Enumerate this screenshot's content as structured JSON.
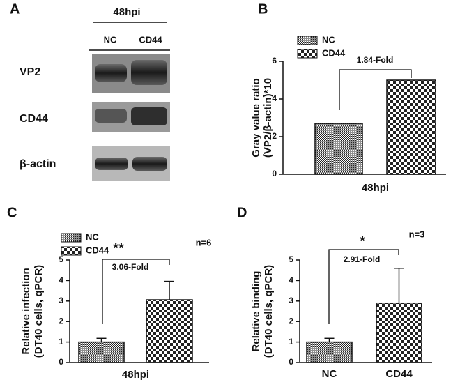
{
  "blot": {
    "panel": "A",
    "title": "48hpi",
    "lanes": [
      "NC",
      "CD44"
    ],
    "rows": [
      "VP2",
      "CD44",
      "β-actin"
    ]
  },
  "chart_data": [
    {
      "type": "bar",
      "panel": "B",
      "ylabel": [
        "Gray value ratio",
        "(VP2/β-actin)*10"
      ],
      "categories": [
        "48hpi"
      ],
      "series": [
        {
          "name": "NC",
          "values": [
            2.7
          ]
        },
        {
          "name": "CD44",
          "values": [
            5.0
          ]
        }
      ],
      "ylim": [
        0,
        6
      ],
      "yticks": [
        0,
        2,
        4,
        6
      ],
      "annotation": "1.84-Fold"
    },
    {
      "type": "bar",
      "panel": "C",
      "ylabel": [
        "Relative infection",
        "(DT40 cells, qPCR)"
      ],
      "categories": [
        "48hpi"
      ],
      "series": [
        {
          "name": "NC",
          "values": [
            1.0
          ],
          "errors": [
            0.18
          ]
        },
        {
          "name": "CD44",
          "values": [
            3.06
          ],
          "errors": [
            0.9
          ]
        }
      ],
      "ylim": [
        0,
        5
      ],
      "yticks": [
        0,
        1,
        2,
        3,
        4,
        5
      ],
      "annotation": "3.06-Fold",
      "significance": "**",
      "n_label": "n=6"
    },
    {
      "type": "bar",
      "panel": "D",
      "ylabel": [
        "Relative binding",
        "(DT40 cells, qPCR)"
      ],
      "categories": [
        "NC",
        "CD44"
      ],
      "values": [
        1.0,
        2.9
      ],
      "errors": [
        0.18,
        1.7
      ],
      "ylim": [
        0,
        5
      ],
      "yticks": [
        0,
        1,
        2,
        3,
        4,
        5
      ],
      "annotation": "2.91-Fold",
      "significance": "*",
      "n_label": "n=3"
    }
  ]
}
